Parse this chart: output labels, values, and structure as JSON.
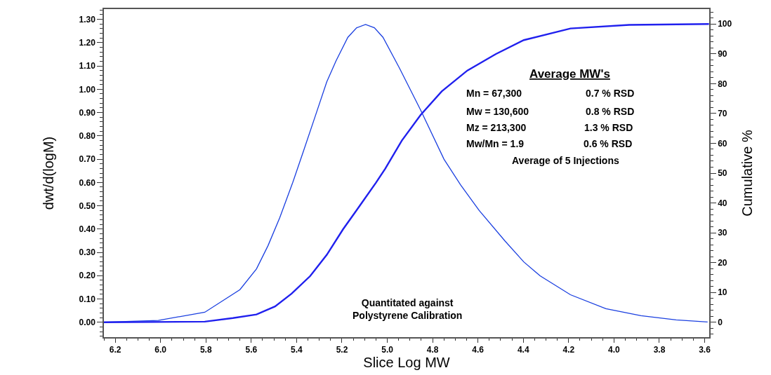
{
  "chart_data": {
    "type": "line",
    "xlabel": "Slice Log MW",
    "ylabel": "dwt/d(logM)",
    "y2label": "Cumulative %",
    "xlim": [
      6.25,
      3.58
    ],
    "xticks": [
      {
        "value": 6.2,
        "label": "6.2"
      },
      {
        "value": 6.0,
        "label": "6.0"
      },
      {
        "value": 5.8,
        "label": "5.8"
      },
      {
        "value": 5.6,
        "label": "5.6"
      },
      {
        "value": 5.4,
        "label": "5.4"
      },
      {
        "value": 5.2,
        "label": "5.2"
      },
      {
        "value": 5.0,
        "label": "5.0"
      },
      {
        "value": 4.8,
        "label": "4.8"
      },
      {
        "value": 4.6,
        "label": "4.6"
      },
      {
        "value": 4.4,
        "label": "4.4"
      },
      {
        "value": 4.2,
        "label": "4.2"
      },
      {
        "value": 4.0,
        "label": "4.0"
      },
      {
        "value": 3.8,
        "label": "3.8"
      },
      {
        "value": 3.6,
        "label": "3.6"
      }
    ],
    "ylim": [
      -0.064,
      1.344
    ],
    "yticks": [
      {
        "value": 0,
        "label": "0.00"
      },
      {
        "value": 0.1,
        "label": "0.10"
      },
      {
        "value": 0.2,
        "label": "0.20"
      },
      {
        "value": 0.3,
        "label": "0.30"
      },
      {
        "value": 0.4,
        "label": "0.40"
      },
      {
        "value": 0.5,
        "label": "0.50"
      },
      {
        "value": 0.6,
        "label": "0.60"
      },
      {
        "value": 0.7,
        "label": "0.70"
      },
      {
        "value": 0.8,
        "label": "0.80"
      },
      {
        "value": 0.9,
        "label": "0.90"
      },
      {
        "value": 1.0,
        "label": "1.00"
      },
      {
        "value": 1.1,
        "label": "1.10"
      },
      {
        "value": 1.2,
        "label": "1.20"
      },
      {
        "value": 1.3,
        "label": "1.30"
      }
    ],
    "y2lim": [
      -5,
      105
    ],
    "y2ticks": [
      0,
      10,
      20,
      30,
      40,
      50,
      60,
      70,
      80,
      90,
      100
    ],
    "marker": "none",
    "line_style": "solid",
    "series": [
      {
        "color": "#1a3fe0",
        "x": [
          6.25,
          6.01,
          5.805,
          5.65,
          5.577,
          5.526,
          5.474,
          5.417,
          5.371,
          5.319,
          5.267,
          5.226,
          5.174,
          5.135,
          5.096,
          5.057,
          5.019,
          4.947,
          4.853,
          4.75,
          4.677,
          4.595,
          4.481,
          4.398,
          4.326,
          4.192,
          4.036,
          3.881,
          3.726,
          3.587
        ],
        "values": [
          0,
          0.008,
          0.043,
          0.14,
          0.229,
          0.329,
          0.45,
          0.6,
          0.731,
          0.881,
          1.032,
          1.122,
          1.223,
          1.264,
          1.278,
          1.264,
          1.223,
          1.092,
          0.911,
          0.7,
          0.59,
          0.48,
          0.349,
          0.259,
          0.199,
          0.118,
          0.058,
          0.028,
          0.01,
          0.001
        ]
      },
      {
        "color": "#2020ee",
        "axis": "y2",
        "x": [
          6.25,
          5.805,
          5.681,
          5.577,
          5.495,
          5.422,
          5.34,
          5.267,
          5.195,
          5.122,
          5.05,
          5.009,
          4.936,
          4.853,
          4.76,
          4.647,
          4.522,
          4.398,
          4.192,
          3.933,
          3.581
        ],
        "values": [
          0,
          0.2,
          1.4,
          2.6,
          5.3,
          9.6,
          15.5,
          22.6,
          31.2,
          39,
          46.8,
          51.5,
          60.9,
          69.5,
          77.4,
          84.4,
          89.9,
          94.6,
          98.5,
          99.7,
          100
        ]
      }
    ],
    "annotations": [
      "Average MW's",
      "Mn = 67,300",
      "0.7 % RSD",
      "Mw = 130,600",
      "0.8 % RSD",
      "Mz = 213,300",
      "1.3 % RSD",
      "Mw/Mn = 1.9",
      "0.6 % RSD",
      "Average of 5 Injections",
      "Quantitated against\nPolystyrene Calibration"
    ]
  }
}
